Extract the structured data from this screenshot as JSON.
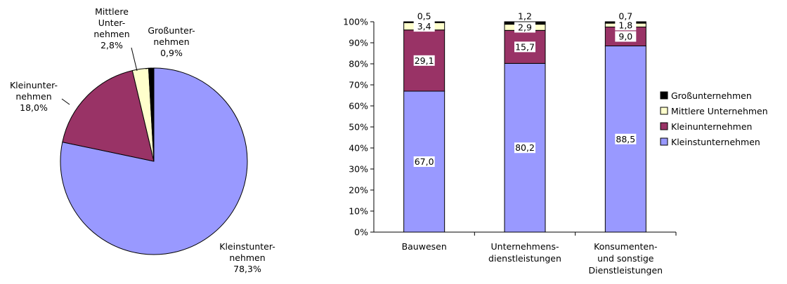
{
  "chart_data": [
    {
      "type": "pie",
      "categories": [
        "Kleinstunternehmen",
        "Kleinunternehmen",
        "Mittlere Unternehmen",
        "Großunternehmen"
      ],
      "values": [
        78.3,
        18.0,
        2.8,
        0.9
      ],
      "labels": [
        [
          "Kleinstunter-",
          "nehmen",
          "78,3%"
        ],
        [
          "Kleinunter-",
          "nehmen",
          "18,0%"
        ],
        [
          "Mittlere",
          "Unter-",
          "nehmen",
          "2,8%"
        ],
        [
          "Großunter-",
          "nehmen",
          "0,9%"
        ]
      ],
      "colors": [
        "#9999ff",
        "#993366",
        "#ffffcc",
        "#000000"
      ]
    },
    {
      "type": "bar",
      "stacked": true,
      "percent": true,
      "categories": [
        [
          "Bauwesen"
        ],
        [
          "Unternehmens-",
          "dienstleistungen"
        ],
        [
          "Konsumenten-",
          "und sonstige",
          "Dienstleistungen"
        ]
      ],
      "series": [
        {
          "name": "Kleinstunternehmen",
          "values": [
            67.0,
            80.2,
            88.5
          ],
          "labels": [
            "67,0",
            "80,2",
            "88,5"
          ],
          "color": "#9999ff"
        },
        {
          "name": "Kleinunternehmen",
          "values": [
            29.1,
            15.7,
            9.0
          ],
          "labels": [
            "29,1",
            "15,7",
            "9,0"
          ],
          "color": "#993366"
        },
        {
          "name": "Mittlere Unternehmen",
          "values": [
            3.4,
            2.9,
            1.8
          ],
          "labels": [
            "3,4",
            "2,9",
            "1,8"
          ],
          "color": "#ffffcc"
        },
        {
          "name": "Großunternehmen",
          "values": [
            0.5,
            1.2,
            0.7
          ],
          "labels": [
            "0,5",
            "1,2",
            "0,7"
          ],
          "color": "#000000"
        }
      ],
      "ylim": [
        0,
        100
      ],
      "yticks": [
        "0%",
        "10%",
        "20%",
        "30%",
        "40%",
        "50%",
        "60%",
        "70%",
        "80%",
        "90%",
        "100%"
      ],
      "legend": {
        "position": "right",
        "entries": [
          "Großunternehmen",
          "Mittlere Unternehmen",
          "Kleinunternehmen",
          "Kleinstunternehmen"
        ]
      }
    }
  ]
}
